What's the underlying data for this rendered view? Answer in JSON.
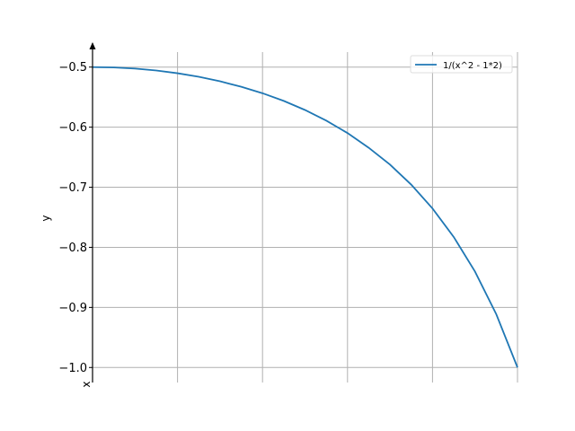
{
  "chart_data": {
    "type": "line",
    "xlabel": "x",
    "ylabel": "y",
    "xlim": [
      0,
      1
    ],
    "ylim": [
      -1.025,
      -0.475
    ],
    "x_gridlines": [
      0.2,
      0.4,
      0.6,
      0.8,
      1.0
    ],
    "y_ticks": [
      -0.5,
      -0.6,
      -0.7,
      -0.8,
      -0.9,
      -1.0
    ],
    "y_tick_labels": [
      "−0.5",
      "−0.6",
      "−0.7",
      "−0.8",
      "−0.9",
      "−1.0"
    ],
    "grid": true,
    "legend_position": "top-right",
    "series": [
      {
        "name": "1/(x^2 - 1*2)",
        "color": "#1f77b4",
        "x": [
          0,
          0.05,
          0.1,
          0.15,
          0.2,
          0.25,
          0.3,
          0.35,
          0.4,
          0.45,
          0.5,
          0.55,
          0.6,
          0.65,
          0.7,
          0.75,
          0.8,
          0.85,
          0.9,
          0.95,
          1.0
        ],
        "y": [
          -0.5,
          -0.5006,
          -0.5025,
          -0.5057,
          -0.5102,
          -0.5161,
          -0.5236,
          -0.5328,
          -0.5435,
          -0.5563,
          -0.5714,
          -0.5891,
          -0.6098,
          -0.6343,
          -0.6623,
          -0.6957,
          -0.7353,
          -0.7828,
          -0.8403,
          -0.9112,
          -1.0
        ]
      }
    ]
  }
}
